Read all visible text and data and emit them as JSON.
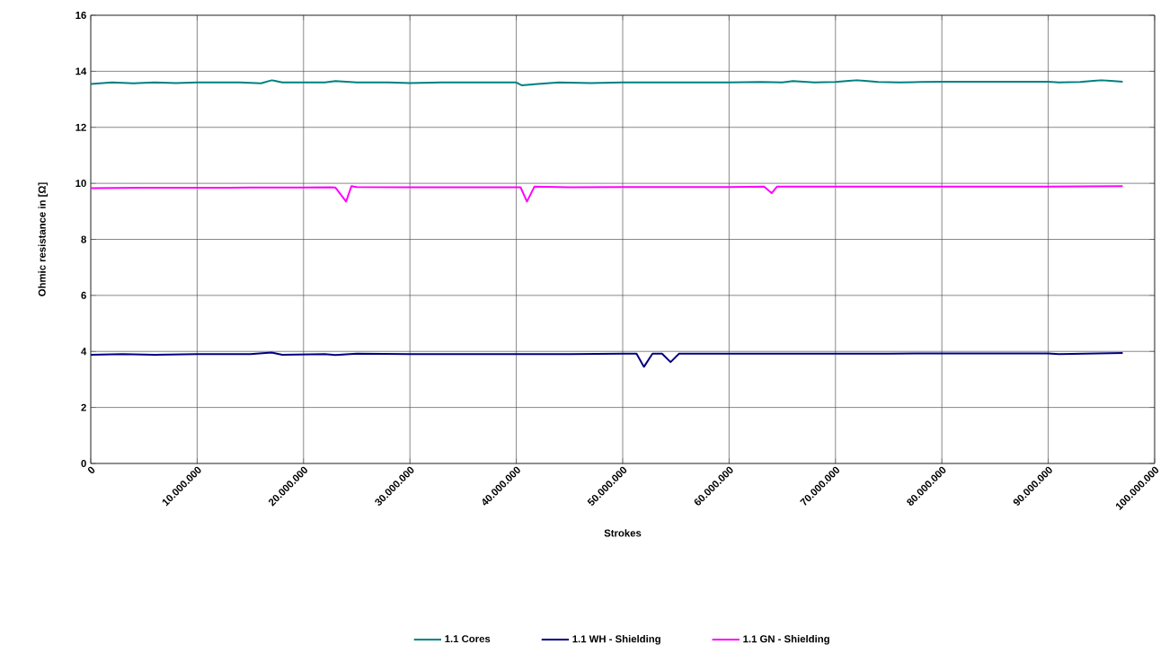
{
  "chart_data": {
    "type": "line",
    "xlabel": "Strokes",
    "ylabel": "Ohmic resistance in [Ω]",
    "xlim": [
      0,
      100000000
    ],
    "ylim": [
      0,
      16
    ],
    "xticks": [
      0,
      {
        "value": 10000000,
        "label": "10.000.000"
      },
      {
        "value": 20000000,
        "label": "20.000.000"
      },
      {
        "value": 30000000,
        "label": "30.000.000"
      },
      {
        "value": 40000000,
        "label": "40.000.000"
      },
      {
        "value": 50000000,
        "label": "50.000.000"
      },
      {
        "value": 60000000,
        "label": "60.000.000"
      },
      {
        "value": 70000000,
        "label": "70.000.000"
      },
      {
        "value": 80000000,
        "label": "80.000.000"
      },
      {
        "value": 90000000,
        "label": "90.000.000"
      },
      {
        "value": 100000000,
        "label": "100.000.000"
      }
    ],
    "yticks": [
      0,
      2,
      4,
      6,
      8,
      10,
      12,
      14,
      16
    ],
    "grid": true,
    "legend": "bottom",
    "marker": "none",
    "line_style": "solid",
    "series": [
      {
        "name": "1.1 Cores",
        "color": "#008080",
        "x": [
          0,
          2000000,
          4000000,
          6000000,
          8000000,
          10000000,
          12000000,
          14000000,
          16000000,
          17000000,
          18000000,
          20000000,
          22000000,
          23000000,
          25000000,
          28000000,
          30000000,
          33000000,
          36000000,
          40000000,
          40500000,
          42000000,
          44000000,
          47000000,
          50000000,
          55000000,
          60000000,
          63000000,
          65000000,
          66000000,
          68000000,
          70000000,
          72000000,
          74000000,
          76000000,
          78000000,
          80000000,
          85000000,
          90000000,
          91000000,
          93000000,
          95000000,
          97000000
        ],
        "values": [
          13.55,
          13.6,
          13.57,
          13.6,
          13.58,
          13.6,
          13.6,
          13.6,
          13.57,
          13.68,
          13.6,
          13.6,
          13.6,
          13.65,
          13.6,
          13.6,
          13.58,
          13.6,
          13.6,
          13.6,
          13.5,
          13.55,
          13.6,
          13.58,
          13.6,
          13.6,
          13.6,
          13.62,
          13.6,
          13.65,
          13.6,
          13.62,
          13.68,
          13.62,
          13.6,
          13.62,
          13.63,
          13.63,
          13.63,
          13.6,
          13.62,
          13.68,
          13.63
        ]
      },
      {
        "name": "1.1 WH - Shielding",
        "color": "#000080",
        "x": [
          0,
          3000000,
          6000000,
          10000000,
          15000000,
          17000000,
          18000000,
          22000000,
          23000000,
          25000000,
          30000000,
          35000000,
          40000000,
          45000000,
          50000000,
          51300000,
          52000000,
          52800000,
          53700000,
          54500000,
          55300000,
          60000000,
          65000000,
          70000000,
          75000000,
          80000000,
          90000000,
          91000000,
          97000000
        ],
        "values": [
          3.88,
          3.9,
          3.88,
          3.9,
          3.9,
          3.96,
          3.88,
          3.9,
          3.87,
          3.92,
          3.9,
          3.9,
          3.9,
          3.9,
          3.92,
          3.92,
          3.45,
          3.92,
          3.92,
          3.62,
          3.92,
          3.92,
          3.92,
          3.92,
          3.92,
          3.93,
          3.93,
          3.9,
          3.94
        ]
      },
      {
        "name": "1.1 GN - Shielding",
        "color": "#ff00ff",
        "x": [
          0,
          5000000,
          10000000,
          15000000,
          20000000,
          22500000,
          23000000,
          24000000,
          24500000,
          25000000,
          30000000,
          35000000,
          40000000,
          40400000,
          41000000,
          41700000,
          45000000,
          50000000,
          55000000,
          60000000,
          63300000,
          64000000,
          64500000,
          70000000,
          80000000,
          90000000,
          97000000
        ],
        "values": [
          9.83,
          9.84,
          9.84,
          9.85,
          9.85,
          9.86,
          9.85,
          9.35,
          9.9,
          9.87,
          9.86,
          9.86,
          9.86,
          9.86,
          9.35,
          9.88,
          9.86,
          9.87,
          9.87,
          9.87,
          9.88,
          9.65,
          9.88,
          9.88,
          9.88,
          9.88,
          9.9
        ]
      }
    ]
  }
}
